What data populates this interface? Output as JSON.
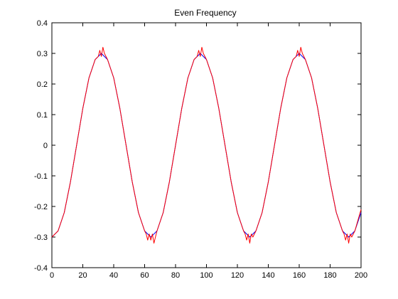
{
  "chart_data": {
    "type": "line",
    "title": "Even Frequency",
    "xlabel": "",
    "ylabel": "",
    "xlim": [
      0,
      200
    ],
    "ylim": [
      -0.4,
      0.4
    ],
    "grid": false,
    "x_ticks": [
      0,
      20,
      40,
      60,
      80,
      100,
      120,
      140,
      160,
      180,
      200
    ],
    "y_ticks": [
      -0.4,
      -0.3,
      -0.2,
      -0.1,
      0,
      0.1,
      0.2,
      0.3,
      0.4
    ],
    "x_tick_labels": [
      "0",
      "20",
      "40",
      "60",
      "80",
      "100",
      "120",
      "140",
      "160",
      "180",
      "200"
    ],
    "y_tick_labels": [
      "-0.4",
      "-0.3",
      "-0.2",
      "-0.1",
      "0",
      "0.1",
      "0.2",
      "0.3",
      "0.4"
    ],
    "series": [
      {
        "color": "#0000ff",
        "x": [
          0,
          4,
          8,
          12,
          16,
          20,
          24,
          28,
          32,
          36,
          40,
          44,
          48,
          52,
          56,
          60,
          64,
          68,
          72,
          76,
          80,
          84,
          88,
          92,
          96,
          100,
          104,
          108,
          112,
          116,
          120,
          124,
          128,
          132,
          136,
          140,
          144,
          148,
          152,
          156,
          160,
          164,
          168,
          172,
          176,
          180,
          184,
          188,
          192,
          196,
          200
        ],
        "y": [
          -0.3,
          -0.28,
          -0.22,
          -0.12,
          0.0,
          0.12,
          0.22,
          0.28,
          0.3,
          0.28,
          0.22,
          0.12,
          0.0,
          -0.12,
          -0.22,
          -0.28,
          -0.3,
          -0.28,
          -0.22,
          -0.12,
          0.0,
          0.12,
          0.22,
          0.28,
          0.3,
          0.28,
          0.22,
          0.12,
          0.0,
          -0.12,
          -0.22,
          -0.28,
          -0.3,
          -0.28,
          -0.22,
          -0.12,
          0.0,
          0.12,
          0.22,
          0.28,
          0.3,
          0.28,
          0.22,
          0.12,
          0.0,
          -0.12,
          -0.22,
          -0.28,
          -0.3,
          -0.28,
          -0.22
        ]
      },
      {
        "color": "#ff0000",
        "x": [
          0,
          4,
          8,
          12,
          16,
          20,
          24,
          26,
          28,
          30,
          31,
          32,
          33,
          34,
          36,
          40,
          44,
          48,
          52,
          56,
          58,
          60,
          61,
          62,
          63,
          64,
          65,
          66,
          67,
          68,
          72,
          76,
          80,
          84,
          88,
          90,
          92,
          94,
          95,
          96,
          97,
          98,
          100,
          104,
          108,
          112,
          116,
          120,
          122,
          124,
          125,
          126,
          127,
          128,
          129,
          130,
          132,
          136,
          140,
          144,
          148,
          152,
          154,
          156,
          158,
          159,
          160,
          161,
          162,
          164,
          168,
          172,
          176,
          180,
          184,
          186,
          188,
          189,
          190,
          191,
          192,
          193,
          194,
          196,
          200
        ],
        "y": [
          -0.3,
          -0.28,
          -0.22,
          -0.12,
          0.0,
          0.12,
          0.22,
          0.25,
          0.28,
          0.29,
          0.31,
          0.29,
          0.32,
          0.3,
          0.28,
          0.22,
          0.12,
          0.0,
          -0.12,
          -0.22,
          -0.25,
          -0.28,
          -0.29,
          -0.31,
          -0.29,
          -0.31,
          -0.29,
          -0.32,
          -0.3,
          -0.28,
          -0.22,
          -0.12,
          0.0,
          0.12,
          0.22,
          0.25,
          0.28,
          0.29,
          0.31,
          0.29,
          0.32,
          0.3,
          0.28,
          0.22,
          0.12,
          0.0,
          -0.12,
          -0.22,
          -0.25,
          -0.28,
          -0.29,
          -0.31,
          -0.29,
          -0.32,
          -0.29,
          -0.3,
          -0.28,
          -0.22,
          -0.12,
          0.0,
          0.12,
          0.22,
          0.25,
          0.28,
          0.29,
          0.31,
          0.29,
          0.32,
          0.3,
          0.28,
          0.22,
          0.12,
          0.0,
          -0.12,
          -0.22,
          -0.25,
          -0.28,
          -0.29,
          -0.31,
          -0.29,
          -0.32,
          -0.29,
          -0.3,
          -0.28,
          -0.21
        ]
      }
    ]
  }
}
